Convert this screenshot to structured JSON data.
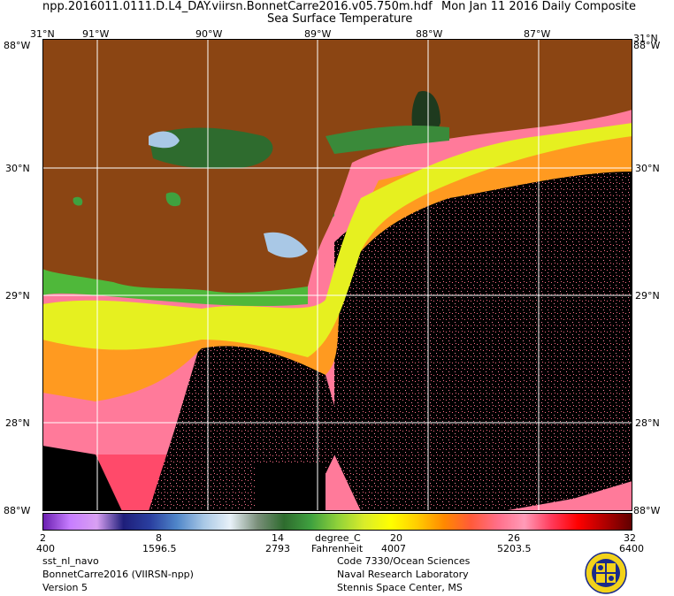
{
  "header": {
    "filename": "npp.2016011.0111.D.L4_DAY.viirsn.BonnetCarre2016.v05.750m.hdf",
    "date": "Mon Jan 11 2016 Daily Composite",
    "product": "Sea Surface Temperature"
  },
  "axes": {
    "lon_top": [
      "91°W",
      "90°W",
      "89°W",
      "88°W",
      "87°W"
    ],
    "lat_left": [
      "30°N",
      "29°N",
      "28°N"
    ],
    "lat_right": [
      "30°N",
      "29°N",
      "28°N"
    ],
    "corner_top_left": "31°N",
    "corner_top_right": "31°N",
    "corner_left_top": "88°W",
    "corner_right_top": "88°W",
    "corner_bottom_left": "88°W",
    "corner_bottom_right": "88°W"
  },
  "colorbar": {
    "celsius_ticks": [
      "2",
      "8",
      "14",
      "20",
      "26",
      "32"
    ],
    "fahrenheit_ticks": [
      "400",
      "1596.5",
      "2793",
      "4007",
      "5203.5",
      "6400"
    ],
    "unit_c": "degree_C",
    "unit_f": "Fahrenheit",
    "colors": [
      "#6a1fb0",
      "#c77dff",
      "#d9a0f2",
      "#1e1e7a",
      "#2a3fa0",
      "#4f86c9",
      "#a9c8e6",
      "#e8f1f8",
      "#7a8f7a",
      "#2e6b2e",
      "#3fa13f",
      "#8fd13a",
      "#d9ec2a",
      "#ffff00",
      "#ffcc00",
      "#ff8800",
      "#ff5a3a",
      "#ff6f8a",
      "#ff9bb8",
      "#ff3a5a",
      "#ff0000",
      "#b00000",
      "#600000"
    ]
  },
  "footer": {
    "left_line1": "sst_nl_navo",
    "left_line2": "BonnetCarre2016 (VIIRSN-npp)",
    "left_line3": "Version 5",
    "right_line1": "Code 7330/Ocean Sciences",
    "right_line2": "Naval Research Laboratory",
    "right_line3": "Stennis Space Center, MS"
  },
  "map": {
    "land_color": "#8b4513",
    "nodata_color": "#000000",
    "grid_color": "#ffffff"
  }
}
